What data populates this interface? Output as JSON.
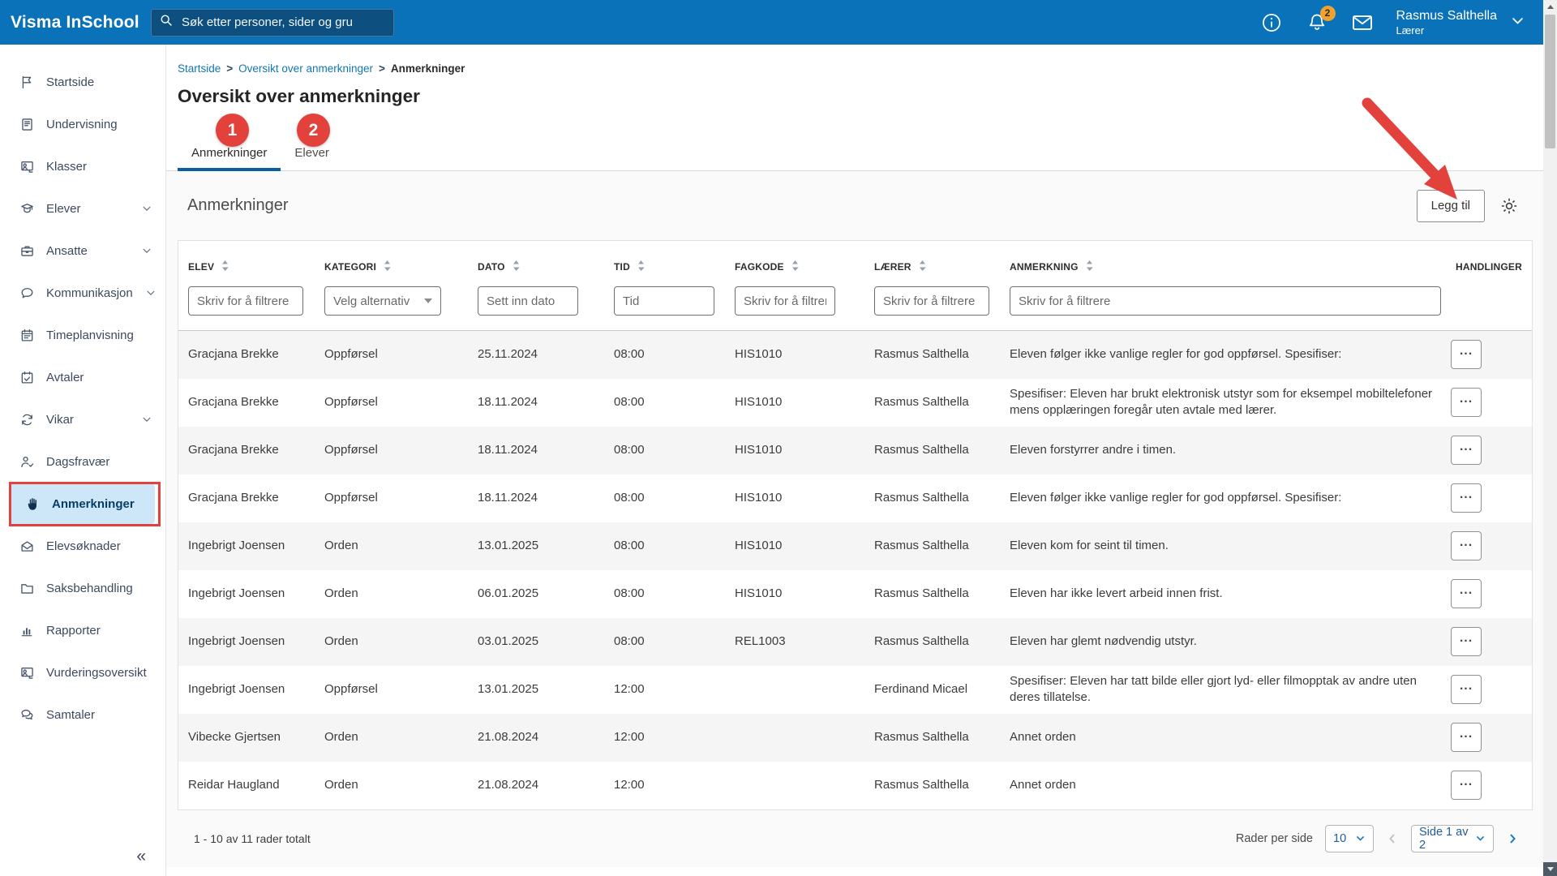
{
  "topbar": {
    "brand": "Visma InSchool",
    "search_placeholder": "Søk etter personer, sider og gru",
    "notification_count": "2",
    "user_name": "Rasmus Salthella",
    "user_role": "Lærer",
    "icons": [
      "search-icon",
      "info-icon",
      "bell-icon",
      "mail-icon",
      "chevron-down-icon"
    ]
  },
  "sidebar": {
    "items": [
      {
        "label": "Startside",
        "icon": "flag-icon"
      },
      {
        "label": "Undervisning",
        "icon": "book-icon"
      },
      {
        "label": "Klasser",
        "icon": "board-person-icon"
      },
      {
        "label": "Elever",
        "icon": "student-icon",
        "expandable": true
      },
      {
        "label": "Ansatte",
        "icon": "briefcase-icon",
        "expandable": true
      },
      {
        "label": "Kommunikasjon",
        "icon": "chat-icon",
        "expandable": true
      },
      {
        "label": "Timeplanvisning",
        "icon": "calendar-icon"
      },
      {
        "label": "Avtaler",
        "icon": "calendar-check-icon"
      },
      {
        "label": "Vikar",
        "icon": "refresh-icon",
        "expandable": true
      },
      {
        "label": "Dagsfravær",
        "icon": "person-check-icon"
      },
      {
        "label": "Anmerkninger",
        "icon": "hand-icon",
        "active": true
      },
      {
        "label": "Elevsøknader",
        "icon": "mail-open-icon"
      },
      {
        "label": "Saksbehandling",
        "icon": "folder-icon"
      },
      {
        "label": "Rapporter",
        "icon": "bar-chart-icon"
      },
      {
        "label": "Vurderingsoversikt",
        "icon": "board-person-icon"
      },
      {
        "label": "Samtaler",
        "icon": "chat-double-icon"
      }
    ],
    "collapse_icon": "«"
  },
  "breadcrumb": [
    "Startside",
    "Oversikt over anmerkninger",
    "Anmerkninger"
  ],
  "page": {
    "title": "Oversikt over anmerkninger"
  },
  "tabs": [
    {
      "label": "Anmerkninger",
      "active": true
    },
    {
      "label": "Elever",
      "active": false
    }
  ],
  "annotations": {
    "steps": [
      "1",
      "2"
    ]
  },
  "section": {
    "title": "Anmerkninger",
    "add_button": "Legg til",
    "settings_icon": "gear-icon"
  },
  "table": {
    "columns": [
      {
        "key": "elev",
        "label": "ELEV",
        "sortable": true,
        "filter": {
          "type": "text",
          "placeholder": "Skriv for å filtrere"
        }
      },
      {
        "key": "kategori",
        "label": "KATEGORI",
        "sortable": true,
        "filter": {
          "type": "select",
          "placeholder": "Velg alternativ"
        }
      },
      {
        "key": "dato",
        "label": "DATO",
        "sortable": true,
        "filter": {
          "type": "text",
          "placeholder": "Sett inn dato"
        }
      },
      {
        "key": "tid",
        "label": "TID",
        "sortable": true,
        "filter": {
          "type": "text",
          "placeholder": "Tid"
        }
      },
      {
        "key": "fagkode",
        "label": "FAGKODE",
        "sortable": true,
        "filter": {
          "type": "text",
          "placeholder": "Skriv for å filtrere"
        }
      },
      {
        "key": "laerer",
        "label": "LÆRER",
        "sortable": true,
        "filter": {
          "type": "text",
          "placeholder": "Skriv for å filtrere"
        }
      },
      {
        "key": "anmerkning",
        "label": "ANMERKNING",
        "sortable": true,
        "filter": {
          "type": "text",
          "placeholder": "Skriv for å filtrere"
        }
      },
      {
        "key": "handlinger",
        "label": "HANDLINGER",
        "sortable": false
      }
    ],
    "action_icon": "ellipsis-icon",
    "rows": [
      {
        "elev": "Gracjana Brekke",
        "kategori": "Oppførsel",
        "dato": "25.11.2024",
        "tid": "08:00",
        "fagkode": "HIS1010",
        "laerer": "Rasmus Salthella",
        "anmerkning": "Eleven følger ikke vanlige regler for god oppførsel. Spesifiser:"
      },
      {
        "elev": "Gracjana Brekke",
        "kategori": "Oppførsel",
        "dato": "18.11.2024",
        "tid": "08:00",
        "fagkode": "HIS1010",
        "laerer": "Rasmus Salthella",
        "anmerkning": "Spesifiser: Eleven har brukt elektronisk utstyr som for eksempel mobiltelefoner mens opplæringen foregår uten avtale med lærer."
      },
      {
        "elev": "Gracjana Brekke",
        "kategori": "Oppførsel",
        "dato": "18.11.2024",
        "tid": "08:00",
        "fagkode": "HIS1010",
        "laerer": "Rasmus Salthella",
        "anmerkning": "Eleven forstyrrer andre i timen."
      },
      {
        "elev": "Gracjana Brekke",
        "kategori": "Oppførsel",
        "dato": "18.11.2024",
        "tid": "08:00",
        "fagkode": "HIS1010",
        "laerer": "Rasmus Salthella",
        "anmerkning": "Eleven følger ikke vanlige regler for god oppførsel. Spesifiser:"
      },
      {
        "elev": "Ingebrigt Joensen",
        "kategori": "Orden",
        "dato": "13.01.2025",
        "tid": "08:00",
        "fagkode": "HIS1010",
        "laerer": "Rasmus Salthella",
        "anmerkning": "Eleven kom for seint til timen."
      },
      {
        "elev": "Ingebrigt Joensen",
        "kategori": "Orden",
        "dato": "06.01.2025",
        "tid": "08:00",
        "fagkode": "HIS1010",
        "laerer": "Rasmus Salthella",
        "anmerkning": "Eleven har ikke levert arbeid innen frist."
      },
      {
        "elev": "Ingebrigt Joensen",
        "kategori": "Orden",
        "dato": "03.01.2025",
        "tid": "08:00",
        "fagkode": "REL1003",
        "laerer": "Rasmus Salthella",
        "anmerkning": "Eleven har glemt nødvendig utstyr."
      },
      {
        "elev": "Ingebrigt Joensen",
        "kategori": "Oppførsel",
        "dato": "13.01.2025",
        "tid": "12:00",
        "fagkode": "",
        "laerer": "Ferdinand Micael",
        "anmerkning": "Spesifiser: Eleven har tatt bilde eller gjort lyd- eller filmopptak av andre uten deres tillatelse."
      },
      {
        "elev": "Vibecke Gjertsen",
        "kategori": "Orden",
        "dato": "21.08.2024",
        "tid": "12:00",
        "fagkode": "",
        "laerer": "Rasmus Salthella",
        "anmerkning": "Annet orden"
      },
      {
        "elev": "Reidar Haugland",
        "kategori": "Orden",
        "dato": "21.08.2024",
        "tid": "12:00",
        "fagkode": "",
        "laerer": "Rasmus Salthella",
        "anmerkning": "Annet orden"
      }
    ]
  },
  "footer": {
    "total": "1 - 10 av 11 rader totalt",
    "rows_per_page_label": "Rader per side",
    "rows_per_page_value": "10",
    "page_value": "Side 1 av 2"
  },
  "colors": {
    "topbar_blue": "#0a72b9",
    "accent_blue": "#0a5fa3",
    "active_item_bg": "#cde7f9",
    "annotation_red": "#e2423b",
    "badge_orange": "#efa22d",
    "row_stripe": "#f5f5f5"
  }
}
